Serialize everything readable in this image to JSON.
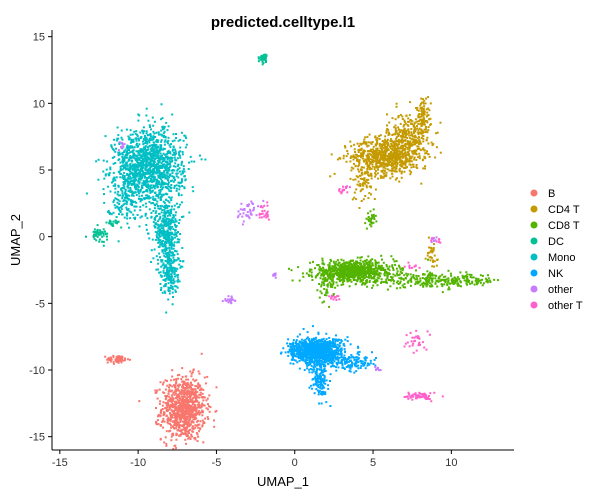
{
  "chart_data": {
    "type": "scatter",
    "title": "predicted.celltype.l1",
    "xlabel": "UMAP_1",
    "ylabel": "UMAP_2",
    "xlim": [
      -15.5,
      14
    ],
    "ylim": [
      -16,
      15.5
    ],
    "xticks": [
      -15,
      -10,
      -5,
      0,
      5,
      10
    ],
    "yticks": [
      -15,
      -10,
      -5,
      0,
      5,
      10,
      15
    ],
    "grid": false,
    "legend_position": "right",
    "series": [
      {
        "name": "B",
        "color": "#F8766D",
        "clusters": [
          {
            "cx": -7.1,
            "cy": -12.9,
            "sx": 0.7,
            "sy": 1.2,
            "n": 900
          },
          {
            "cx": -11.3,
            "cy": -9.2,
            "sx": 0.35,
            "sy": 0.15,
            "n": 60
          }
        ]
      },
      {
        "name": "CD4 T",
        "color": "#C49A00",
        "clusters": [
          {
            "cx": 5.8,
            "cy": 6.0,
            "sx": 1.1,
            "sy": 0.7,
            "n": 700
          },
          {
            "cx": 7.3,
            "cy": 7.5,
            "sx": 0.7,
            "sy": 0.9,
            "n": 300
          },
          {
            "cx": 8.2,
            "cy": 9.3,
            "sx": 0.2,
            "sy": 0.6,
            "n": 70
          },
          {
            "cx": 4.4,
            "cy": 4.0,
            "sx": 0.4,
            "sy": 0.7,
            "n": 60
          },
          {
            "cx": 8.7,
            "cy": -1.5,
            "sx": 0.3,
            "sy": 0.6,
            "n": 30
          }
        ]
      },
      {
        "name": "CD8 T",
        "color": "#53B400",
        "clusters": [
          {
            "cx": 3.8,
            "cy": -2.6,
            "sx": 1.3,
            "sy": 0.4,
            "n": 800
          },
          {
            "cx": 9.0,
            "cy": -3.3,
            "sx": 2.2,
            "sy": 0.25,
            "n": 280
          },
          {
            "cx": 4.9,
            "cy": 1.3,
            "sx": 0.12,
            "sy": 0.3,
            "n": 30
          },
          {
            "cx": 2.0,
            "cy": -3.6,
            "sx": 0.25,
            "sy": 0.6,
            "n": 60
          }
        ]
      },
      {
        "name": "DC",
        "color": "#00C094",
        "clusters": [
          {
            "cx": -12.5,
            "cy": 0.2,
            "sx": 0.3,
            "sy": 0.25,
            "n": 50
          },
          {
            "cx": -11.6,
            "cy": 1.0,
            "sx": 0.2,
            "sy": 0.15,
            "n": 20
          },
          {
            "cx": -2.0,
            "cy": 13.4,
            "sx": 0.12,
            "sy": 0.15,
            "n": 45
          }
        ]
      },
      {
        "name": "Mono",
        "color": "#00BFC4",
        "clusters": [
          {
            "cx": -9.3,
            "cy": 5.3,
            "sx": 1.1,
            "sy": 1.4,
            "n": 1300
          },
          {
            "cx": -8.2,
            "cy": 0.5,
            "sx": 0.4,
            "sy": 1.2,
            "n": 350
          },
          {
            "cx": -8.0,
            "cy": -2.5,
            "sx": 0.3,
            "sy": 0.9,
            "n": 200
          },
          {
            "cx": -10.8,
            "cy": 3.3,
            "sx": 0.6,
            "sy": 1.2,
            "n": 150
          }
        ]
      },
      {
        "name": "NK",
        "color": "#00A9FF",
        "clusters": [
          {
            "cx": 1.5,
            "cy": -8.6,
            "sx": 0.8,
            "sy": 0.5,
            "n": 1000
          },
          {
            "cx": 1.6,
            "cy": -10.7,
            "sx": 0.25,
            "sy": 0.7,
            "n": 150
          },
          {
            "cx": 3.8,
            "cy": -9.5,
            "sx": 0.7,
            "sy": 0.3,
            "n": 120
          },
          {
            "cx": -0.1,
            "cy": -8.6,
            "sx": 0.2,
            "sy": 0.4,
            "n": 40
          }
        ]
      },
      {
        "name": "other",
        "color": "#C77CFF",
        "clusters": [
          {
            "cx": -3.0,
            "cy": 2.0,
            "sx": 0.35,
            "sy": 0.35,
            "n": 40
          },
          {
            "cx": -4.2,
            "cy": -4.8,
            "sx": 0.2,
            "sy": 0.15,
            "n": 20
          },
          {
            "cx": -1.3,
            "cy": -2.9,
            "sx": 0.1,
            "sy": 0.1,
            "n": 8
          },
          {
            "cx": 5.3,
            "cy": -9.9,
            "sx": 0.1,
            "sy": 0.1,
            "n": 10
          },
          {
            "cx": 9.0,
            "cy": -0.2,
            "sx": 0.15,
            "sy": 0.15,
            "n": 8
          },
          {
            "cx": -11.0,
            "cy": 6.8,
            "sx": 0.12,
            "sy": 0.12,
            "n": 10
          }
        ]
      },
      {
        "name": "other T",
        "color": "#FF61CC",
        "clusters": [
          {
            "cx": 8.0,
            "cy": -12.0,
            "sx": 0.45,
            "sy": 0.15,
            "n": 60
          },
          {
            "cx": 7.7,
            "cy": -7.8,
            "sx": 0.3,
            "sy": 0.4,
            "n": 30
          },
          {
            "cx": -1.9,
            "cy": 1.9,
            "sx": 0.2,
            "sy": 0.3,
            "n": 25
          },
          {
            "cx": 3.1,
            "cy": 3.6,
            "sx": 0.15,
            "sy": 0.2,
            "n": 15
          },
          {
            "cx": 2.5,
            "cy": -4.5,
            "sx": 0.2,
            "sy": 0.2,
            "n": 15
          },
          {
            "cx": 7.5,
            "cy": -2.2,
            "sx": 0.2,
            "sy": 0.15,
            "n": 10
          },
          {
            "cx": 9.2,
            "cy": -0.3,
            "sx": 0.15,
            "sy": 0.1,
            "n": 8
          }
        ]
      }
    ]
  }
}
